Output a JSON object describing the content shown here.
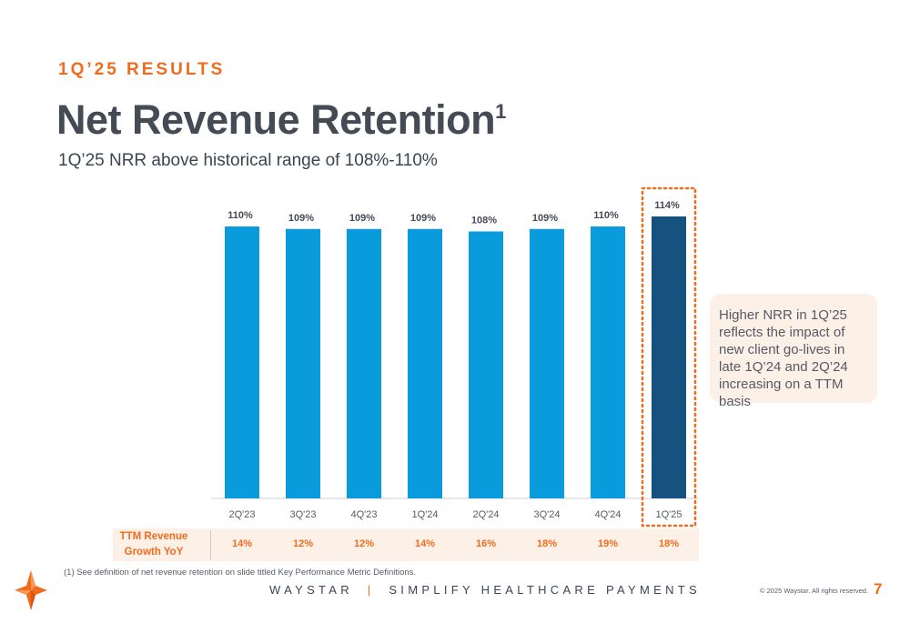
{
  "header": {
    "eyebrow": "1Q’25 RESULTS",
    "title": "Net Revenue Retention",
    "title_footnote_marker": "1",
    "subtitle": "1Q’25 NRR above historical range of 108%-110%"
  },
  "chart_data": {
    "type": "bar",
    "categories": [
      "2Q'23",
      "3Q'23",
      "4Q'23",
      "1Q'24",
      "2Q'24",
      "3Q'24",
      "4Q'24",
      "1Q'25"
    ],
    "values": [
      110,
      109,
      109,
      109,
      108,
      109,
      110,
      114
    ],
    "value_labels": [
      "110%",
      "109%",
      "109%",
      "109%",
      "108%",
      "109%",
      "110%",
      "114%"
    ],
    "highlighted_category": "1Q'25",
    "colors": {
      "bar": "#0a9bdc",
      "highlight_bar": "#15527f",
      "highlight_border": "#f26b1d"
    }
  },
  "callout": {
    "text": "Higher NRR in 1Q’25 reflects the impact of new client go-lives in late 1Q’24 and 2Q’24 increasing on a TTM basis"
  },
  "ttm": {
    "label_line1": "TTM Revenue",
    "label_line2": "Growth YoY",
    "values": [
      "14%",
      "12%",
      "12%",
      "14%",
      "16%",
      "18%",
      "19%",
      "18%"
    ]
  },
  "footer": {
    "footnote": "(1)   See definition of net revenue retention on slide titled Key Performance Metric Definitions.",
    "brand": "WAYSTAR",
    "separator": "|",
    "tagline": "SIMPLIFY HEALTHCARE PAYMENTS",
    "copyright": "© 2025 Waystar. All rights reserved.",
    "page_number": "7"
  },
  "colors": {
    "accent": "#f26b1d",
    "text": "#3d4451",
    "callout_bg": "#fdf0e6"
  }
}
